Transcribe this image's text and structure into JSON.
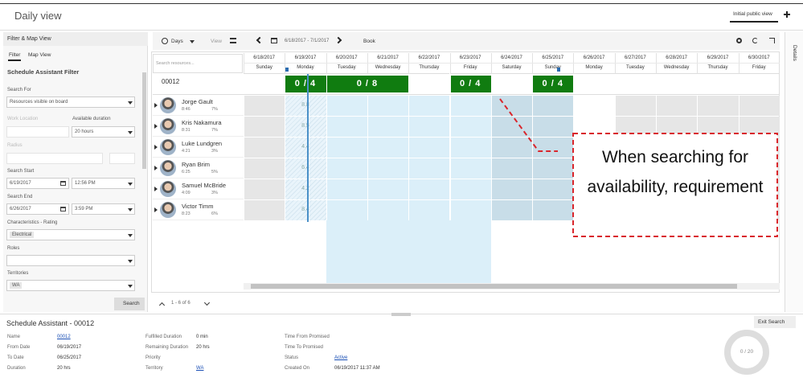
{
  "header": {
    "title": "Daily view",
    "view_button": "Initial public view"
  },
  "filter_panel": {
    "title": "Filter & Map View",
    "tabs": [
      "Filter",
      "Map View"
    ],
    "subtitle": "Schedule Assistant Filter",
    "search_for": {
      "label": "Search For",
      "value": "Resources visible on board"
    },
    "work_location": {
      "label": "Work Location"
    },
    "available_duration": {
      "label": "Available duration",
      "value": "20 hours"
    },
    "radius": {
      "label": "Radius"
    },
    "search_start": {
      "label": "Search Start",
      "date": "6/19/2017",
      "time": "12:56 PM"
    },
    "search_end": {
      "label": "Search End",
      "date": "6/26/2017",
      "time": "3:59 PM"
    },
    "characteristics": {
      "label": "Characteristics - Rating",
      "tags": [
        "Electrical"
      ]
    },
    "roles": {
      "label": "Roles"
    },
    "territories": {
      "label": "Territories",
      "tags": [
        "WA"
      ]
    },
    "search_button": "Search"
  },
  "toolbar": {
    "days": "Days",
    "view": "View",
    "date_range": "6/18/2017 - 7/1/2017",
    "book": "Book"
  },
  "board": {
    "search_placeholder": "Search resources...",
    "dates": [
      {
        "date": "6/18/2017",
        "day": "Sunday"
      },
      {
        "date": "6/19/2017",
        "day": "Monday"
      },
      {
        "date": "6/20/2017",
        "day": "Tuesday"
      },
      {
        "date": "6/21/2017",
        "day": "Wednesday"
      },
      {
        "date": "6/22/2017",
        "day": "Thursday"
      },
      {
        "date": "6/23/2017",
        "day": "Friday"
      },
      {
        "date": "6/24/2017",
        "day": "Saturday"
      },
      {
        "date": "6/25/2017",
        "day": "Sunday"
      },
      {
        "date": "6/26/2017",
        "day": "Monday"
      },
      {
        "date": "6/27/2017",
        "day": "Tuesday"
      },
      {
        "date": "6/28/2017",
        "day": "Wednesday"
      },
      {
        "date": "6/29/2017",
        "day": "Thursday"
      },
      {
        "date": "6/30/2017",
        "day": "Friday"
      }
    ],
    "requirement": {
      "name": "00012",
      "badges": [
        "0 / 4",
        "0 / 8",
        "0 / 4",
        "0 / 4"
      ]
    },
    "resources": [
      {
        "name": "Jorge Gault",
        "time": "8:46",
        "percent": "7%",
        "hours": "8.8"
      },
      {
        "name": "Kris Nakamura",
        "time": "8:31",
        "percent": "7%",
        "hours": "8.5"
      },
      {
        "name": "Luke Lundgren",
        "time": "4:21",
        "percent": "3%",
        "hours": "4.4"
      },
      {
        "name": "Ryan Brim",
        "time": "6:25",
        "percent": "5%",
        "hours": "6.4"
      },
      {
        "name": "Samuel McBride",
        "time": "4:09",
        "percent": "3%",
        "hours": "4.2"
      },
      {
        "name": "Victor Timm",
        "time": "8:23",
        "percent": "6%",
        "hours": "8.4"
      }
    ],
    "pager": "1 - 6 of 6"
  },
  "annotation": "When searching for availability, requirement",
  "details_tab": "Details",
  "bottom": {
    "title": "Schedule Assistant - 00012",
    "exit_button": "Exit Search",
    "columns": [
      [
        {
          "label": "Name",
          "value": "00012",
          "link": true
        },
        {
          "label": "From Date",
          "value": "06/19/2017"
        },
        {
          "label": "To Date",
          "value": "06/25/2017"
        },
        {
          "label": "Duration",
          "value": "20 hrs"
        }
      ],
      [
        {
          "label": "Fulfilled Duration",
          "value": "0 min"
        },
        {
          "label": "Remaining Duration",
          "value": "20 hrs"
        },
        {
          "label": "Priority"
        },
        {
          "label": "Territory",
          "value": "WA",
          "link": true
        }
      ],
      [
        {
          "label": "Time From Promised"
        },
        {
          "label": "Time To Promised"
        },
        {
          "label": "Status",
          "value": "Active",
          "link": true
        },
        {
          "label": "Created On",
          "value": "06/19/2017 11:37 AM"
        }
      ]
    ],
    "donut": "0 / 20"
  }
}
